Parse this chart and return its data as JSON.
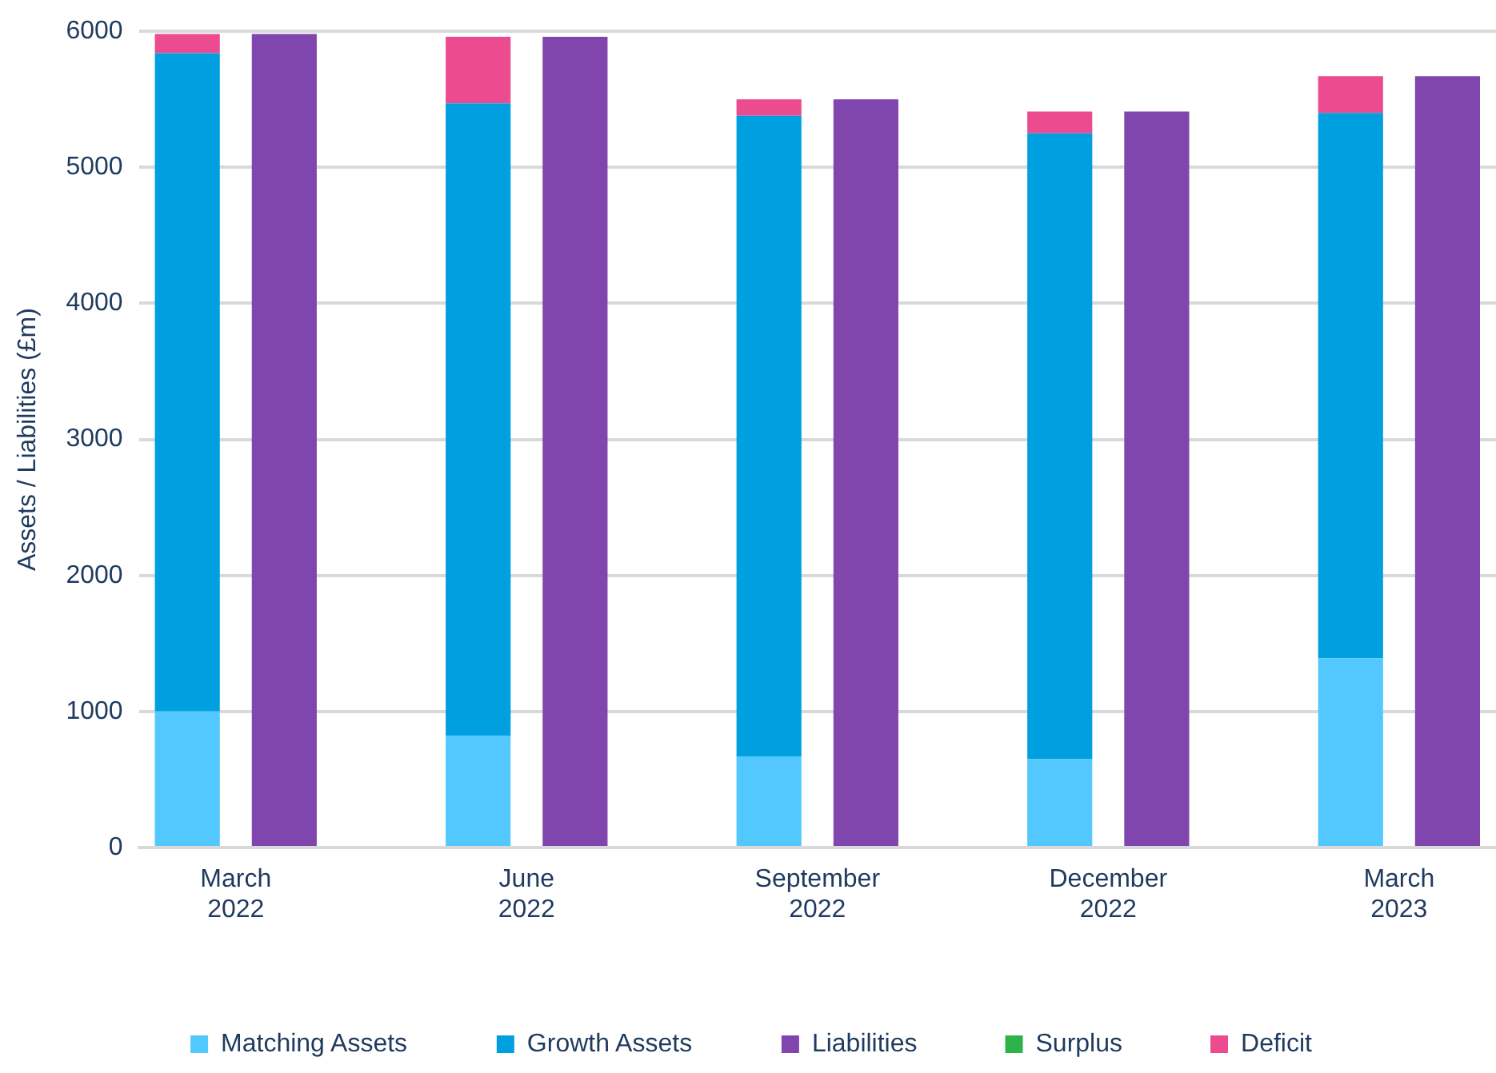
{
  "chart_data": {
    "type": "bar",
    "stacked": true,
    "ylabel": "Assets / Liabilities (£m)",
    "categories": [
      "March 2022",
      null,
      null,
      "June 2022",
      null,
      null,
      "September 2022",
      null,
      null,
      "December 2022",
      null,
      null,
      "March 2023",
      null
    ],
    "series": [
      {
        "name": "Matching Assets",
        "color": "#52c8ff",
        "values": [
          1000,
          null,
          null,
          820,
          null,
          null,
          670,
          null,
          null,
          650,
          null,
          null,
          1390,
          null
        ]
      },
      {
        "name": "Growth Assets",
        "color": "#009fe0",
        "values": [
          4840,
          null,
          null,
          4650,
          null,
          null,
          4710,
          null,
          null,
          4600,
          null,
          null,
          4010,
          null
        ]
      },
      {
        "name": "Liabilities",
        "color": "#8146ad",
        "values": [
          null,
          5980,
          null,
          null,
          5960,
          null,
          null,
          5500,
          null,
          null,
          5410,
          null,
          null,
          5670
        ]
      },
      {
        "name": "Surplus",
        "color": "#2db34a",
        "values": [
          null,
          null,
          null,
          null,
          null,
          null,
          null,
          null,
          null,
          null,
          null,
          null,
          null,
          null
        ]
      },
      {
        "name": "Deficit",
        "color": "#ec4b8f",
        "values": [
          140,
          null,
          null,
          490,
          null,
          null,
          120,
          null,
          null,
          160,
          null,
          null,
          270,
          null
        ]
      }
    ],
    "ylim": [
      0,
      6000
    ],
    "yticks": [
      0,
      1000,
      2000,
      3000,
      4000,
      5000,
      6000
    ],
    "grid": "y",
    "legend": "bottom"
  }
}
